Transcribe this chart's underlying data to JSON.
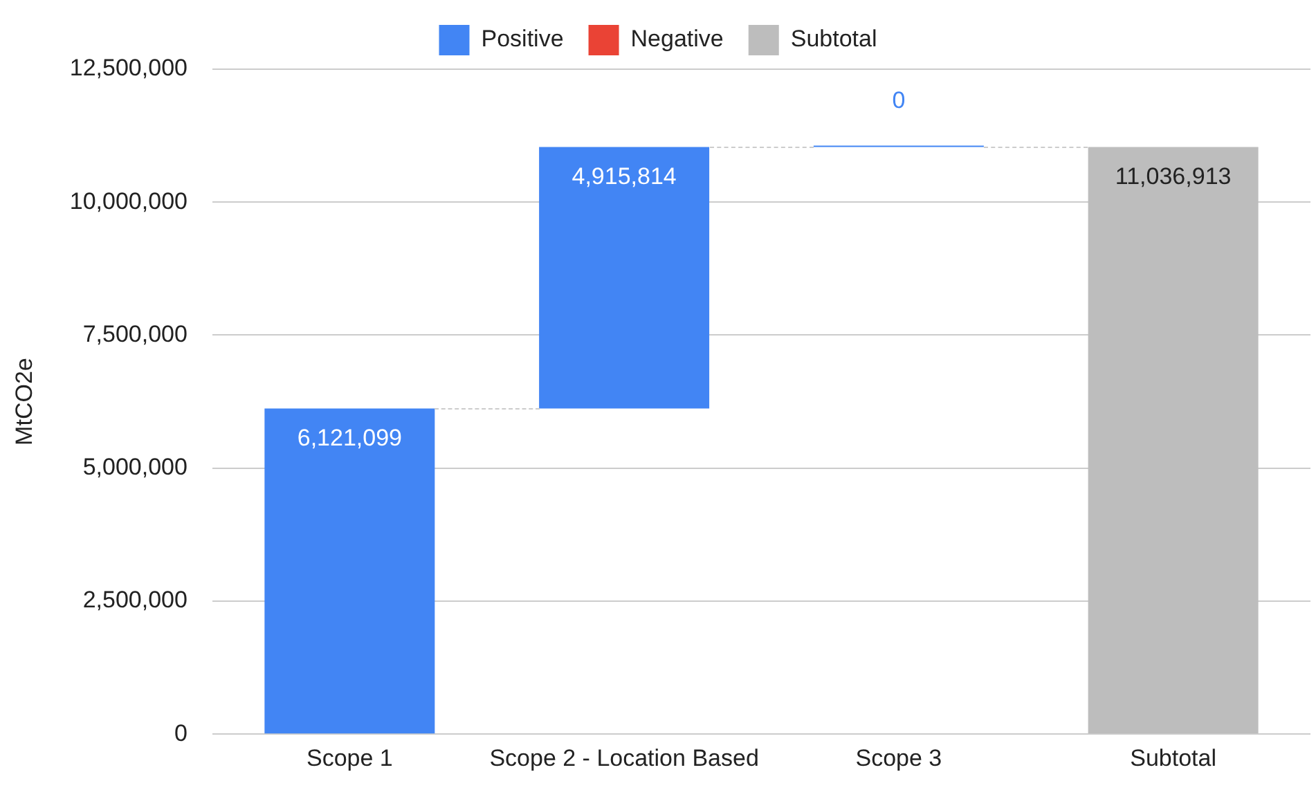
{
  "chart_data": {
    "type": "bar",
    "ylabel": "MtCO2e",
    "categories": [
      "Scope 1",
      "Scope 2 - Location Based",
      "Scope 3",
      "Subtotal"
    ],
    "series": [
      {
        "name": "Positive",
        "color": "#4285f4",
        "values": [
          6121099,
          4915814,
          0,
          null
        ],
        "base": [
          0,
          6121099,
          11036913,
          null
        ],
        "value_labels": [
          "6,121,099",
          "4,915,814",
          "0",
          null
        ]
      },
      {
        "name": "Negative",
        "color": "#ea4335",
        "values": [
          null,
          null,
          null,
          null
        ]
      },
      {
        "name": "Subtotal",
        "color": "#bdbdbd",
        "values": [
          null,
          null,
          null,
          11036913
        ],
        "base": [
          null,
          null,
          null,
          0
        ],
        "value_labels": [
          null,
          null,
          null,
          "11,036,913"
        ]
      }
    ],
    "ylim": [
      0,
      12500000
    ],
    "yticks": [
      0,
      {
        "value": 2500000,
        "label": "2,500,000"
      },
      {
        "value": 5000000,
        "label": "5,000,000"
      },
      {
        "value": 7500000,
        "label": "7,500,000"
      },
      {
        "value": 10000000,
        "label": "10,000,000"
      },
      {
        "value": 12500000,
        "label": "12,500,000"
      }
    ],
    "grid": "y",
    "legend": "top"
  }
}
